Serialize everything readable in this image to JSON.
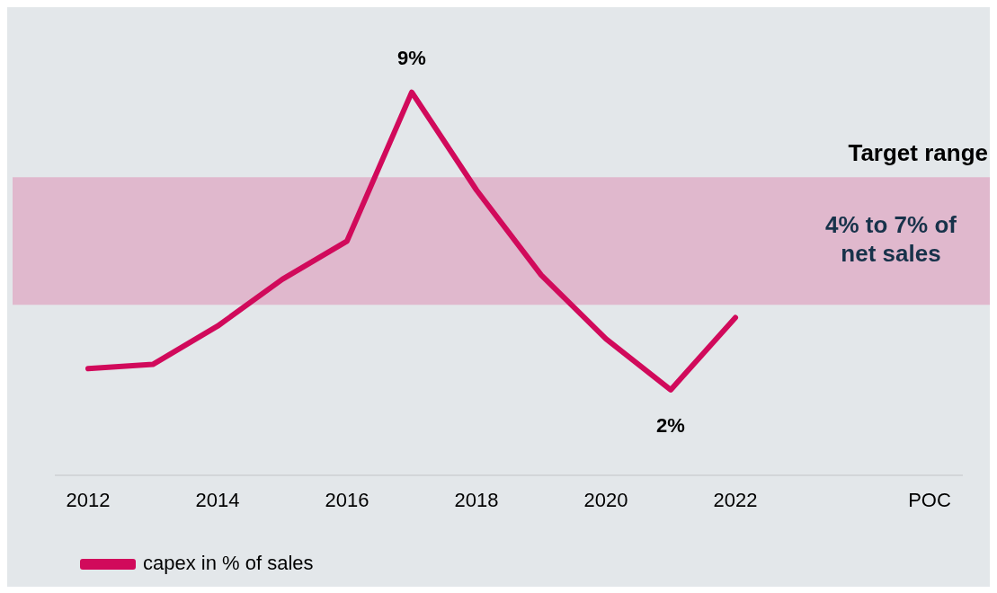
{
  "chart_data": {
    "type": "line",
    "categories": [
      "2012",
      null,
      "2014",
      null,
      "2016",
      null,
      "2018",
      null,
      "2020",
      null,
      "2022",
      null,
      null,
      "POC"
    ],
    "series": [
      {
        "name": "capex in % of sales",
        "color": "#d10a5b",
        "values": [
          2.5,
          2.6,
          3.5,
          4.6,
          5.5,
          9,
          6.7,
          4.7,
          3.2,
          2,
          3.7,
          null,
          null,
          null
        ],
        "value_labels": [
          null,
          null,
          null,
          null,
          null,
          "9%",
          null,
          null,
          null,
          "2%",
          null,
          null,
          null,
          null
        ]
      }
    ],
    "ylim": [
      0,
      11
    ],
    "bands": [
      {
        "axis": "y",
        "from": 4,
        "to": 7,
        "label": "4% to 7% of net sales",
        "color": "#e0b8cd"
      }
    ],
    "annotations": [
      "Target range"
    ],
    "tick_labels": "x",
    "legend": "bottom left"
  }
}
